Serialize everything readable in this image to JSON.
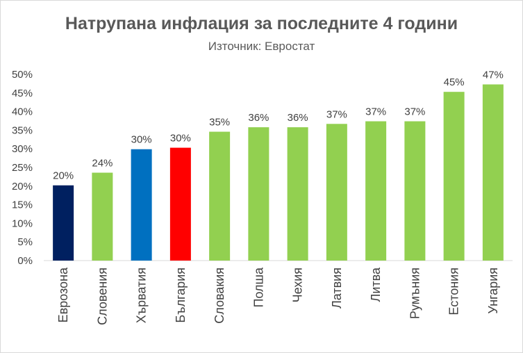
{
  "chart_data": {
    "type": "bar",
    "title": "Натрупана инфлация за последните 4 години",
    "subtitle": "Източник: Евростат",
    "categories": [
      "Еврозона",
      "Словения",
      "Хърватия",
      "България",
      "Словакия",
      "Полша",
      "Чехия",
      "Латвия",
      "Литва",
      "Румъния",
      "Естония",
      "Унгария"
    ],
    "values": [
      20.2,
      23.6,
      29.9,
      30.3,
      34.6,
      35.8,
      35.8,
      36.7,
      37.4,
      37.4,
      45.3,
      47.3
    ],
    "data_labels": [
      "20%",
      "24%",
      "30%",
      "30%",
      "35%",
      "36%",
      "36%",
      "37%",
      "37%",
      "37%",
      "45%",
      "47%"
    ],
    "colors": [
      "#002060",
      "#92d050",
      "#0070c0",
      "#ff0000",
      "#92d050",
      "#92d050",
      "#92d050",
      "#92d050",
      "#92d050",
      "#92d050",
      "#92d050",
      "#92d050"
    ],
    "ylim": [
      0,
      50
    ],
    "yticks": [
      "0%",
      "5%",
      "10%",
      "15%",
      "20%",
      "25%",
      "30%",
      "35%",
      "40%",
      "45%",
      "50%"
    ],
    "ytick_values": [
      0,
      5,
      10,
      15,
      20,
      25,
      30,
      35,
      40,
      45,
      50
    ],
    "grid": false,
    "legend": "none",
    "xlabel": "",
    "ylabel": ""
  }
}
